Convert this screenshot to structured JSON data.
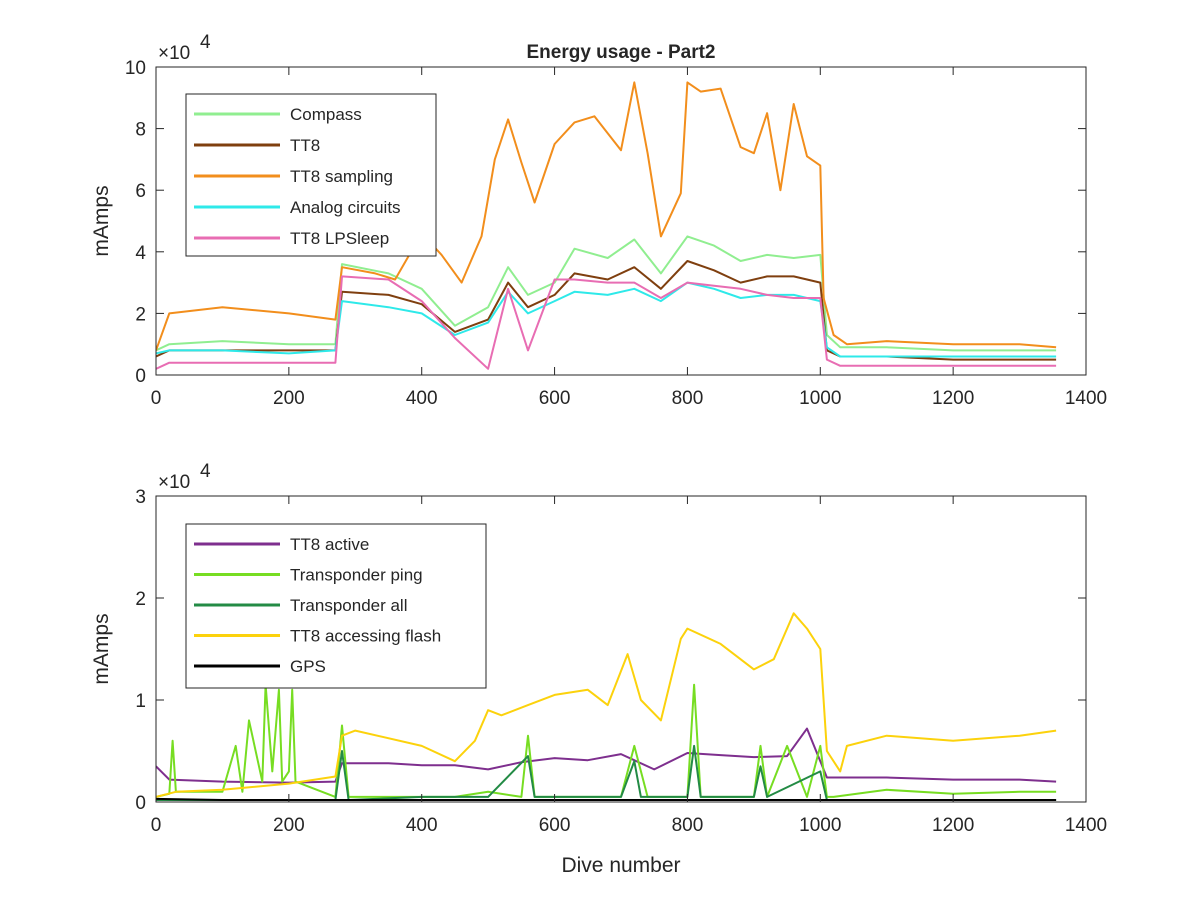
{
  "chart_data": [
    {
      "type": "line",
      "title": "Energy usage - Part2",
      "xlabel": "",
      "ylabel": "mAmps",
      "y_multiplier_label": "×10",
      "y_multiplier_exponent": "4",
      "xlim": [
        0,
        1400
      ],
      "ylim": [
        0,
        10
      ],
      "xticks": [
        "0",
        "200",
        "400",
        "600",
        "800",
        "1000",
        "1200",
        "1400"
      ],
      "yticks": [
        "0",
        "2",
        "4",
        "6",
        "8",
        "10"
      ],
      "grid": false,
      "legend_position": "top-left",
      "series": [
        {
          "name": "Compass",
          "color": "#90EE90",
          "x": [
            0,
            20,
            100,
            200,
            270,
            280,
            350,
            400,
            450,
            500,
            530,
            560,
            600,
            630,
            680,
            720,
            760,
            800,
            840,
            880,
            920,
            960,
            1000,
            1010,
            1030,
            1100,
            1200,
            1300,
            1355
          ],
          "y": [
            0.8,
            1.0,
            1.1,
            1.0,
            1.0,
            3.6,
            3.3,
            2.8,
            1.6,
            2.2,
            3.5,
            2.6,
            3.0,
            4.1,
            3.8,
            4.4,
            3.3,
            4.5,
            4.2,
            3.7,
            3.9,
            3.8,
            3.9,
            1.3,
            0.9,
            0.9,
            0.8,
            0.8,
            0.8
          ]
        },
        {
          "name": "TT8",
          "color": "#7F3F0F",
          "x": [
            0,
            20,
            100,
            200,
            270,
            280,
            350,
            400,
            450,
            500,
            530,
            560,
            600,
            630,
            680,
            720,
            760,
            800,
            840,
            880,
            920,
            960,
            1000,
            1010,
            1030,
            1100,
            1200,
            1300,
            1355
          ],
          "y": [
            0.6,
            0.8,
            0.8,
            0.8,
            0.8,
            2.7,
            2.6,
            2.3,
            1.4,
            1.8,
            3.0,
            2.2,
            2.6,
            3.3,
            3.1,
            3.5,
            2.8,
            3.7,
            3.4,
            3.0,
            3.2,
            3.2,
            3.0,
            0.8,
            0.6,
            0.6,
            0.5,
            0.5,
            0.5
          ]
        },
        {
          "name": "TT8 sampling",
          "color": "#F28E1C",
          "x": [
            0,
            20,
            100,
            200,
            270,
            280,
            330,
            360,
            400,
            430,
            460,
            490,
            510,
            530,
            550,
            570,
            600,
            630,
            660,
            700,
            720,
            740,
            760,
            790,
            800,
            820,
            850,
            880,
            900,
            920,
            940,
            960,
            980,
            1000,
            1005,
            1020,
            1040,
            1100,
            1200,
            1300,
            1355
          ],
          "y": [
            0.8,
            2.0,
            2.2,
            2.0,
            1.8,
            3.5,
            3.3,
            3.1,
            4.6,
            3.9,
            3.0,
            4.5,
            7.0,
            8.3,
            6.9,
            5.6,
            7.5,
            8.2,
            8.4,
            7.3,
            9.5,
            7.2,
            4.5,
            5.9,
            9.5,
            9.2,
            9.3,
            7.4,
            7.2,
            8.5,
            6.0,
            8.8,
            7.1,
            6.8,
            2.5,
            1.3,
            1.0,
            1.1,
            1.0,
            1.0,
            0.9
          ]
        },
        {
          "name": "Analog circuits",
          "color": "#2EE9E9",
          "x": [
            0,
            20,
            100,
            200,
            270,
            280,
            350,
            400,
            450,
            500,
            530,
            560,
            600,
            630,
            680,
            720,
            760,
            800,
            840,
            880,
            920,
            960,
            1000,
            1010,
            1030,
            1100,
            1200,
            1300,
            1355
          ],
          "y": [
            0.7,
            0.8,
            0.8,
            0.7,
            0.8,
            2.4,
            2.2,
            2.0,
            1.3,
            1.7,
            2.7,
            2.0,
            2.4,
            2.7,
            2.6,
            2.8,
            2.4,
            3.0,
            2.8,
            2.5,
            2.6,
            2.6,
            2.4,
            0.9,
            0.6,
            0.6,
            0.6,
            0.6,
            0.6
          ]
        },
        {
          "name": "TT8 LPSleep",
          "color": "#E86DB3",
          "x": [
            0,
            20,
            100,
            200,
            270,
            280,
            350,
            400,
            450,
            500,
            530,
            560,
            600,
            630,
            680,
            720,
            760,
            800,
            840,
            880,
            920,
            960,
            1000,
            1010,
            1030,
            1100,
            1200,
            1300,
            1355
          ],
          "y": [
            0.2,
            0.4,
            0.4,
            0.4,
            0.4,
            3.2,
            3.1,
            2.4,
            1.2,
            0.2,
            2.8,
            0.8,
            3.1,
            3.1,
            3.0,
            3.0,
            2.5,
            3.0,
            2.9,
            2.8,
            2.6,
            2.5,
            2.5,
            0.5,
            0.3,
            0.3,
            0.3,
            0.3,
            0.3
          ]
        }
      ]
    },
    {
      "type": "line",
      "title": "",
      "xlabel": "Dive number",
      "ylabel": "mAmps",
      "y_multiplier_label": "×10",
      "y_multiplier_exponent": "4",
      "xlim": [
        0,
        1400
      ],
      "ylim": [
        0,
        3
      ],
      "xticks": [
        "0",
        "200",
        "400",
        "600",
        "800",
        "1000",
        "1200",
        "1400"
      ],
      "yticks": [
        "0",
        "1",
        "2",
        "3"
      ],
      "grid": false,
      "legend_position": "top-left",
      "series": [
        {
          "name": "TT8 active",
          "color": "#7E2F8E",
          "x": [
            0,
            20,
            100,
            200,
            270,
            280,
            350,
            400,
            450,
            500,
            550,
            600,
            650,
            700,
            750,
            800,
            850,
            900,
            950,
            980,
            1000,
            1010,
            1100,
            1200,
            1300,
            1355
          ],
          "y": [
            0.35,
            0.22,
            0.2,
            0.19,
            0.2,
            0.38,
            0.38,
            0.36,
            0.36,
            0.32,
            0.39,
            0.43,
            0.41,
            0.47,
            0.32,
            0.48,
            0.46,
            0.44,
            0.45,
            0.72,
            0.4,
            0.24,
            0.24,
            0.22,
            0.22,
            0.2
          ]
        },
        {
          "name": "Transponder ping",
          "color": "#77DD22",
          "x": [
            0,
            20,
            25,
            30,
            100,
            120,
            130,
            140,
            160,
            165,
            175,
            185,
            190,
            200,
            205,
            210,
            270,
            280,
            290,
            350,
            400,
            450,
            500,
            550,
            560,
            570,
            600,
            700,
            720,
            740,
            800,
            810,
            820,
            900,
            910,
            920,
            950,
            980,
            1000,
            1010,
            1020,
            1100,
            1200,
            1300,
            1355
          ],
          "y": [
            0.05,
            0.08,
            0.6,
            0.1,
            0.1,
            0.55,
            0.1,
            0.8,
            0.2,
            1.15,
            0.3,
            1.1,
            0.2,
            0.3,
            1.1,
            0.2,
            0.05,
            0.75,
            0.05,
            0.05,
            0.05,
            0.05,
            0.1,
            0.05,
            0.65,
            0.05,
            0.05,
            0.05,
            0.55,
            0.05,
            0.05,
            1.15,
            0.05,
            0.05,
            0.55,
            0.05,
            0.55,
            0.05,
            0.55,
            0.05,
            0.05,
            0.12,
            0.08,
            0.1,
            0.1
          ]
        },
        {
          "name": "Transponder all",
          "color": "#238B45",
          "x": [
            0,
            100,
            270,
            280,
            290,
            400,
            500,
            560,
            570,
            700,
            720,
            730,
            800,
            810,
            820,
            900,
            910,
            920,
            1000,
            1010,
            1100,
            1355
          ],
          "y": [
            0.02,
            0.02,
            0.02,
            0.5,
            0.02,
            0.05,
            0.05,
            0.45,
            0.05,
            0.05,
            0.4,
            0.05,
            0.05,
            0.55,
            0.05,
            0.05,
            0.35,
            0.05,
            0.3,
            0.02,
            0.02,
            0.02
          ]
        },
        {
          "name": "TT8 accessing flash",
          "color": "#FCD20C",
          "x": [
            0,
            30,
            100,
            200,
            270,
            280,
            300,
            400,
            450,
            480,
            500,
            520,
            560,
            600,
            650,
            680,
            710,
            730,
            760,
            790,
            800,
            850,
            900,
            930,
            960,
            980,
            1000,
            1010,
            1030,
            1040,
            1100,
            1200,
            1300,
            1355
          ],
          "y": [
            0.05,
            0.1,
            0.12,
            0.18,
            0.25,
            0.65,
            0.7,
            0.55,
            0.4,
            0.6,
            0.9,
            0.85,
            0.95,
            1.05,
            1.1,
            0.95,
            1.45,
            1.0,
            0.8,
            1.6,
            1.7,
            1.55,
            1.3,
            1.4,
            1.85,
            1.7,
            1.5,
            0.5,
            0.3,
            0.55,
            0.65,
            0.6,
            0.65,
            0.7
          ]
        },
        {
          "name": "GPS",
          "color": "#000000",
          "x": [
            0,
            100,
            200,
            300,
            400,
            500,
            600,
            700,
            800,
            900,
            1000,
            1100,
            1200,
            1300,
            1355
          ],
          "y": [
            0.03,
            0.02,
            0.02,
            0.02,
            0.02,
            0.02,
            0.02,
            0.02,
            0.02,
            0.02,
            0.02,
            0.02,
            0.02,
            0.02,
            0.02
          ]
        }
      ]
    }
  ]
}
